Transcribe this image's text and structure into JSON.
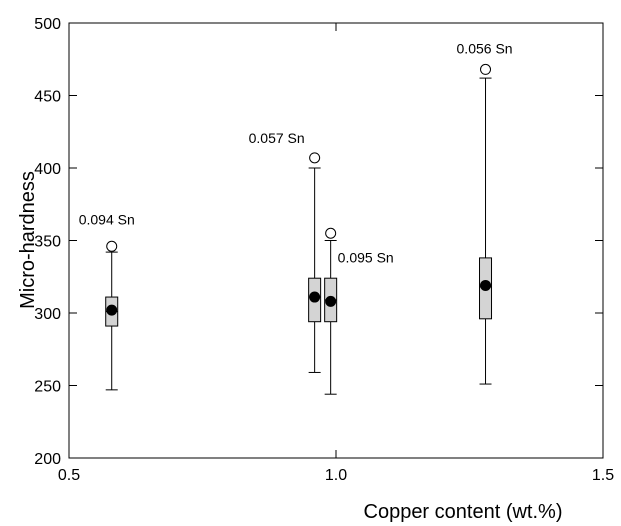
{
  "chart_data": {
    "type": "box",
    "xlabel": "Copper content (wt.%)",
    "ylabel": "Micro-hardness",
    "xlim": [
      0.5,
      1.5
    ],
    "ylim": [
      200,
      500
    ],
    "xticks": [
      0.5,
      1.0,
      1.5
    ],
    "xtick_labels": [
      "0.5",
      "1.0",
      "1.5"
    ],
    "yticks": [
      200,
      250,
      300,
      350,
      400,
      450,
      500
    ],
    "ytick_labels": [
      "200",
      "250",
      "300",
      "350",
      "400",
      "450",
      "500"
    ],
    "grid": false,
    "boxes": [
      {
        "x": 0.58,
        "q1": 291,
        "q3": 311,
        "median": 301,
        "whisker_low": 247,
        "whisker_high": 342,
        "mean": 302,
        "outlier": 346,
        "annotation": "0.094 Sn"
      },
      {
        "x": 0.96,
        "q1": 294,
        "q3": 324,
        "median": 311,
        "whisker_low": 259,
        "whisker_high": 400,
        "mean": 311,
        "outlier": 407,
        "annotation": "0.057 Sn"
      },
      {
        "x": 0.99,
        "q1": 294,
        "q3": 324,
        "median": 309,
        "whisker_low": 244,
        "whisker_high": 350,
        "mean": 308,
        "outlier": 355,
        "annotation": "0.095 Sn"
      },
      {
        "x": 1.28,
        "q1": 296,
        "q3": 338,
        "median": 318,
        "whisker_low": 251,
        "whisker_high": 462,
        "mean": 319,
        "outlier": 468,
        "annotation": "0.056 Sn"
      }
    ],
    "colors": {
      "box_fill": "#d4d4d4",
      "line": "#000000",
      "mean_marker": "#000000",
      "outlier_fill": "#ffffff"
    }
  }
}
